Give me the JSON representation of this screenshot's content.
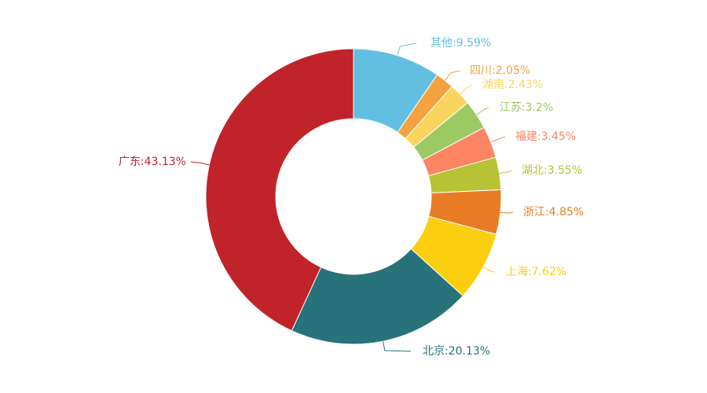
{
  "chart_data": {
    "type": "pie",
    "variant": "donut",
    "legend": "none",
    "slices": [
      {
        "label": "其他:9.59%",
        "name": "其他",
        "value": 9.59,
        "color": "#62bfe0"
      },
      {
        "label": "四川:2.05%",
        "name": "四川",
        "value": 2.05,
        "color": "#f2a33f"
      },
      {
        "label": "湖南:2.43%",
        "name": "湖南",
        "value": 2.43,
        "color": "#fad55e"
      },
      {
        "label": "江苏:3.2%",
        "name": "江苏",
        "value": 3.2,
        "color": "#9bca63"
      },
      {
        "label": "福建:3.45%",
        "name": "福建",
        "value": 3.45,
        "color": "#fd8563"
      },
      {
        "label": "湖北:3.55%",
        "name": "湖北",
        "value": 3.55,
        "color": "#b6c334"
      },
      {
        "label": "浙江:4.85%",
        "name": "浙江",
        "value": 4.85,
        "color": "#e87c25"
      },
      {
        "label": "上海:7.62%",
        "name": "上海",
        "value": 7.62,
        "color": "#fbce10"
      },
      {
        "label": "北京:20.13%",
        "name": "北京",
        "value": 20.13,
        "color": "#27727b"
      },
      {
        "label": "广东:43.13%",
        "name": "广东",
        "value": 43.13,
        "color": "#c1232b"
      }
    ]
  }
}
